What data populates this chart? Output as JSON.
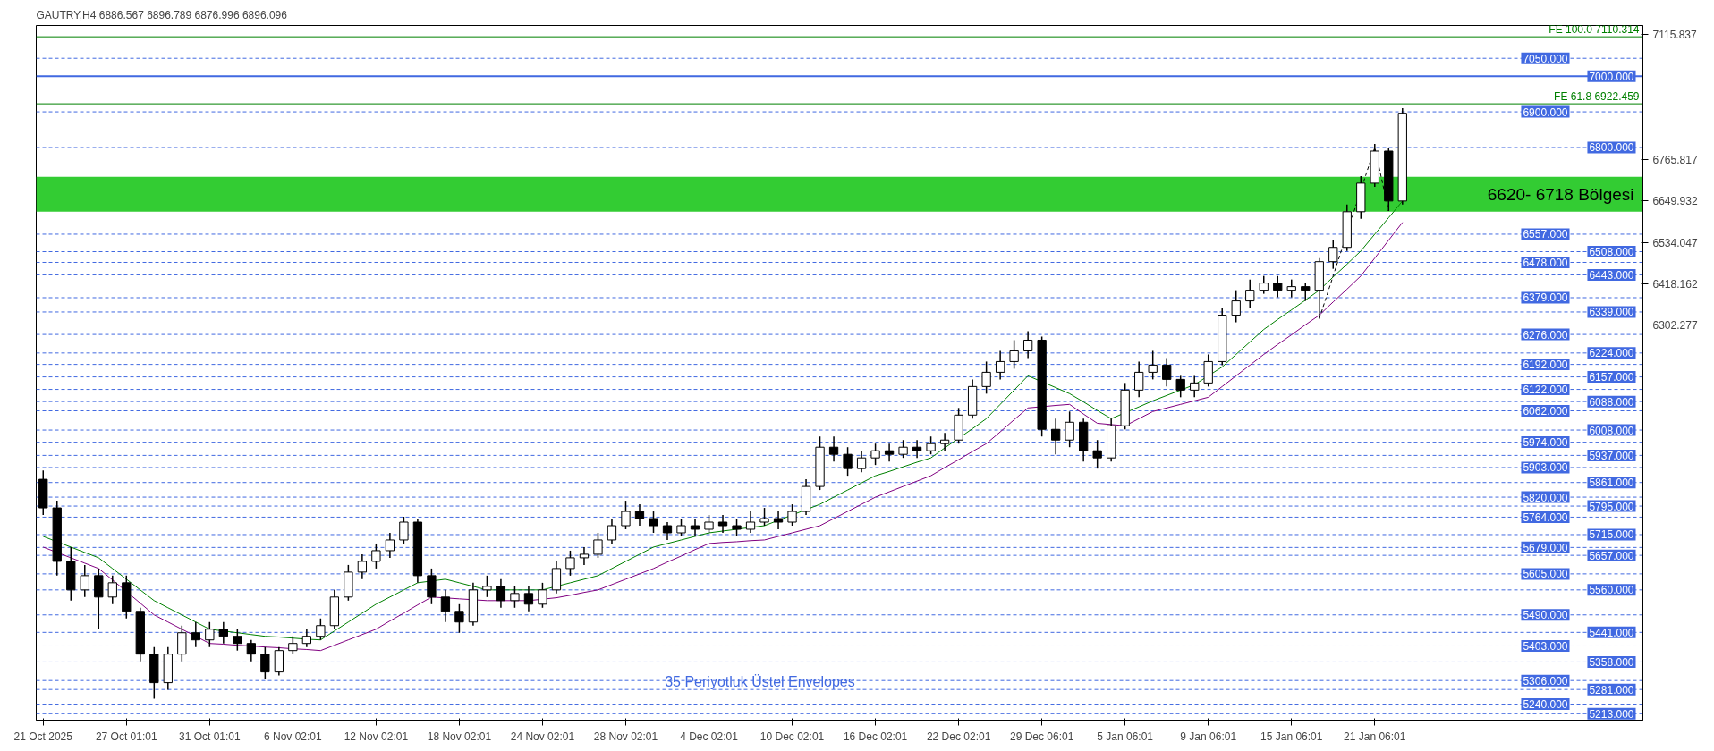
{
  "chart_data": {
    "type": "candlestick",
    "title": "GAUTRY,H4  6886.567 6896.789 6876.996 6896.096",
    "categories": [
      "21 Oct 2025",
      null,
      null,
      null,
      null,
      null,
      "27 Oct 01:01",
      null,
      null,
      null,
      null,
      null,
      "31 Oct 01:01",
      null,
      null,
      null,
      null,
      null,
      "6 Nov 02:01",
      null,
      null,
      null,
      null,
      null,
      "12 Nov 02:01",
      null,
      null,
      null,
      null,
      null,
      "18 Nov 02:01",
      null,
      null,
      null,
      null,
      null,
      "24 Nov 02:01",
      null,
      null,
      null,
      null,
      null,
      "28 Nov 02:01",
      null,
      null,
      null,
      null,
      null,
      "4 Dec 02:01",
      null,
      null,
      null,
      null,
      null,
      "10 Dec 02:01",
      null,
      null,
      null,
      null,
      null,
      "16 Dec 02:01",
      null,
      null,
      null,
      null,
      null,
      "22 Dec 02:01",
      null,
      null,
      null,
      null,
      null,
      "29 Dec 06:01",
      null,
      null,
      null,
      null,
      null,
      "5 Jan 06:01",
      null,
      null,
      null,
      null,
      null,
      "9 Jan 06:01",
      null,
      null,
      null,
      null,
      null,
      "15 Jan 06:01",
      null,
      null,
      null,
      null,
      null,
      "21 Jan 06:01",
      null,
      null
    ],
    "ohlc": [
      [
        5870,
        5895,
        5770,
        5790
      ],
      [
        5790,
        5810,
        5600,
        5640
      ],
      [
        5640,
        5680,
        5530,
        5560
      ],
      [
        5560,
        5630,
        5540,
        5600
      ],
      [
        5600,
        5620,
        5450,
        5540
      ],
      [
        5540,
        5600,
        5520,
        5580
      ],
      [
        5580,
        5600,
        5480,
        5500
      ],
      [
        5500,
        5510,
        5360,
        5380
      ],
      [
        5380,
        5400,
        5255,
        5300
      ],
      [
        5300,
        5400,
        5280,
        5380
      ],
      [
        5380,
        5460,
        5360,
        5440
      ],
      [
        5440,
        5470,
        5400,
        5420
      ],
      [
        5420,
        5470,
        5400,
        5450
      ],
      [
        5450,
        5470,
        5410,
        5430
      ],
      [
        5430,
        5450,
        5390,
        5410
      ],
      [
        5410,
        5420,
        5360,
        5380
      ],
      [
        5380,
        5400,
        5310,
        5330
      ],
      [
        5330,
        5400,
        5320,
        5390
      ],
      [
        5390,
        5430,
        5380,
        5410
      ],
      [
        5410,
        5450,
        5400,
        5430
      ],
      [
        5430,
        5480,
        5420,
        5460
      ],
      [
        5460,
        5560,
        5450,
        5540
      ],
      [
        5540,
        5630,
        5530,
        5610
      ],
      [
        5610,
        5660,
        5590,
        5640
      ],
      [
        5640,
        5690,
        5620,
        5670
      ],
      [
        5670,
        5720,
        5650,
        5700
      ],
      [
        5700,
        5765,
        5690,
        5750
      ],
      [
        5750,
        5760,
        5580,
        5600
      ],
      [
        5600,
        5620,
        5520,
        5540
      ],
      [
        5540,
        5560,
        5470,
        5500
      ],
      [
        5500,
        5520,
        5440,
        5470
      ],
      [
        5470,
        5580,
        5460,
        5560
      ],
      [
        5560,
        5600,
        5540,
        5570
      ],
      [
        5570,
        5590,
        5510,
        5530
      ],
      [
        5530,
        5570,
        5510,
        5550
      ],
      [
        5550,
        5570,
        5500,
        5520
      ],
      [
        5520,
        5580,
        5510,
        5560
      ],
      [
        5560,
        5640,
        5550,
        5620
      ],
      [
        5620,
        5670,
        5600,
        5650
      ],
      [
        5650,
        5680,
        5630,
        5660
      ],
      [
        5660,
        5720,
        5650,
        5700
      ],
      [
        5700,
        5760,
        5690,
        5740
      ],
      [
        5740,
        5810,
        5730,
        5780
      ],
      [
        5780,
        5800,
        5740,
        5760
      ],
      [
        5760,
        5780,
        5720,
        5740
      ],
      [
        5740,
        5750,
        5700,
        5720
      ],
      [
        5720,
        5760,
        5710,
        5740
      ],
      [
        5740,
        5760,
        5710,
        5730
      ],
      [
        5730,
        5770,
        5720,
        5750
      ],
      [
        5750,
        5770,
        5720,
        5740
      ],
      [
        5740,
        5760,
        5710,
        5730
      ],
      [
        5730,
        5780,
        5720,
        5750
      ],
      [
        5750,
        5790,
        5740,
        5760
      ],
      [
        5760,
        5780,
        5730,
        5750
      ],
      [
        5750,
        5800,
        5740,
        5780
      ],
      [
        5780,
        5870,
        5770,
        5850
      ],
      [
        5850,
        5990,
        5840,
        5960
      ],
      [
        5960,
        5990,
        5920,
        5940
      ],
      [
        5940,
        5960,
        5880,
        5900
      ],
      [
        5900,
        5950,
        5890,
        5930
      ],
      [
        5930,
        5970,
        5910,
        5950
      ],
      [
        5950,
        5970,
        5920,
        5940
      ],
      [
        5940,
        5980,
        5930,
        5960
      ],
      [
        5960,
        5980,
        5930,
        5950
      ],
      [
        5950,
        5990,
        5940,
        5970
      ],
      [
        5970,
        6000,
        5950,
        5980
      ],
      [
        5980,
        6070,
        5970,
        6050
      ],
      [
        6050,
        6150,
        6040,
        6130
      ],
      [
        6130,
        6200,
        6110,
        6170
      ],
      [
        6170,
        6230,
        6150,
        6200
      ],
      [
        6200,
        6260,
        6180,
        6230
      ],
      [
        6230,
        6285,
        6210,
        6260
      ],
      [
        6260,
        6270,
        5990,
        6010
      ],
      [
        6010,
        6040,
        5940,
        5980
      ],
      [
        5980,
        6060,
        5960,
        6030
      ],
      [
        6030,
        6040,
        5920,
        5950
      ],
      [
        5950,
        5980,
        5900,
        5930
      ],
      [
        5930,
        6040,
        5920,
        6020
      ],
      [
        6020,
        6140,
        6010,
        6120
      ],
      [
        6120,
        6200,
        6100,
        6170
      ],
      [
        6170,
        6230,
        6150,
        6190
      ],
      [
        6190,
        6210,
        6130,
        6150
      ],
      [
        6150,
        6160,
        6100,
        6120
      ],
      [
        6120,
        6160,
        6100,
        6140
      ],
      [
        6140,
        6220,
        6130,
        6200
      ],
      [
        6200,
        6350,
        6190,
        6330
      ],
      [
        6330,
        6400,
        6310,
        6370
      ],
      [
        6370,
        6430,
        6350,
        6400
      ],
      [
        6400,
        6440,
        6390,
        6420
      ],
      [
        6420,
        6440,
        6380,
        6400
      ],
      [
        6400,
        6430,
        6380,
        6410
      ],
      [
        6410,
        6420,
        6370,
        6400
      ],
      [
        6400,
        6490,
        6320,
        6480
      ],
      [
        6480,
        6540,
        6460,
        6520
      ],
      [
        6520,
        6640,
        6510,
        6620
      ],
      [
        6620,
        6720,
        6600,
        6700
      ],
      [
        6700,
        6810,
        6690,
        6790
      ],
      [
        6790,
        6800,
        6622,
        6650
      ],
      [
        6650,
        6910,
        6640,
        6896
      ]
    ],
    "series": [
      {
        "type": "line",
        "color": "#008000",
        "values": [
          5710,
          null,
          5680,
          5665,
          5650,
          5620,
          5590,
          5560,
          5530,
          5510,
          5490,
          5470,
          5450,
          5445,
          5440,
          5435,
          5430,
          5428,
          5425,
          5422,
          5420,
          5445,
          5470,
          5495,
          5520,
          5540,
          5560,
          5580,
          null,
          5590,
          5580,
          5570,
          5560,
          null,
          5560,
          5560,
          5560,
          null,
          5580,
          5590,
          5600,
          5620,
          5640,
          5660,
          5680,
          5690,
          5700,
          5710,
          5720,
          5725,
          5730,
          5735,
          5740,
          5755,
          5770,
          null,
          5800,
          5820,
          5840,
          5860,
          5880,
          5892,
          5905,
          5918,
          5930,
          5958,
          5985,
          6012,
          6040,
          6080,
          6120,
          6160,
          null,
          6127,
          6110,
          6087,
          6063,
          6040,
          null,
          6073,
          6090,
          6105,
          6120,
          6135,
          null,
          6185,
          6220,
          6255,
          6290,
          6318,
          6345,
          6372,
          6400,
          6437,
          6473,
          6510,
          6557,
          6603,
          6650
        ]
      },
      {
        "type": "line",
        "color": "#800080",
        "values": [
          5680,
          null,
          5650,
          5635,
          5620,
          5588,
          null,
          5523,
          5490,
          5470,
          5450,
          5430,
          5410,
          5408,
          5405,
          5403,
          5400,
          5398,
          5395,
          5393,
          5390,
          5405,
          5420,
          5435,
          5450,
          5473,
          5495,
          5518,
          5540,
          null,
          5535,
          null,
          5530,
          null,
          5530,
          5530,
          null,
          5538,
          5545,
          5553,
          5560,
          5575,
          5590,
          5605,
          5620,
          5638,
          5655,
          5673,
          5690,
          5693,
          5695,
          5698,
          5700,
          5710,
          5720,
          5730,
          5740,
          5760,
          5780,
          5800,
          5820,
          5835,
          5850,
          5865,
          5880,
          5903,
          5925,
          5948,
          5970,
          6003,
          6037,
          6070,
          null,
          6077,
          6080,
          6053,
          6027,
          null,
          6020,
          6040,
          6060,
          6070,
          6080,
          6090,
          6100,
          6130,
          6160,
          6190,
          6220,
          6248,
          6275,
          6303,
          6330,
          6367,
          6403,
          6440,
          6490,
          6540,
          6590
        ]
      },
      {
        "type": "line",
        "color": "#000000",
        "line_style": "dashed",
        "values": [
          null,
          null,
          null,
          null,
          null,
          null,
          null,
          null,
          null,
          null,
          null,
          null,
          null,
          null,
          null,
          null,
          null,
          null,
          null,
          null,
          null,
          null,
          null,
          null,
          null,
          null,
          null,
          null,
          null,
          null,
          null,
          null,
          null,
          null,
          null,
          null,
          null,
          null,
          null,
          null,
          null,
          null,
          null,
          null,
          null,
          null,
          null,
          null,
          null,
          null,
          null,
          null,
          null,
          null,
          null,
          null,
          null,
          null,
          null,
          null,
          null,
          null,
          null,
          null,
          null,
          null,
          null,
          null,
          null,
          null,
          null,
          null,
          null,
          null,
          null,
          null,
          null,
          null,
          null,
          null,
          null,
          null,
          null,
          null,
          null,
          null,
          null,
          null,
          null,
          null,
          null,
          null,
          6320,
          null,
          null,
          null,
          6800,
          6622,
          null
        ]
      }
    ],
    "ylim": [
      5195,
      7142
    ],
    "yticks": [
      7115.837,
      6765.817,
      6649.932,
      6534.047,
      6418.162,
      6302.277
    ],
    "ref_lines": [
      {
        "axis": "y",
        "value": 7110.314,
        "color": "#008000",
        "line_style": "solid"
      },
      {
        "axis": "y",
        "value": 6922.459,
        "color": "#008000",
        "line_style": "solid"
      },
      {
        "axis": "y",
        "value": 7050,
        "label": "7050.000",
        "color": "#4169e1",
        "line_style": "dashed"
      },
      {
        "axis": "y",
        "value": 7000,
        "label": "7000.000",
        "color": "#4169e1",
        "line_style": "solid"
      },
      {
        "axis": "y",
        "value": 6900,
        "label": "6900.000",
        "color": "#4169e1",
        "line_style": "dashed"
      },
      {
        "axis": "y",
        "value": 6800,
        "label": "6800.000",
        "color": "#4169e1",
        "line_style": "dashed"
      },
      {
        "axis": "y",
        "value": 6557,
        "label": "6557.000",
        "color": "#4169e1",
        "line_style": "dashed"
      },
      {
        "axis": "y",
        "value": 6508,
        "label": "6508.000",
        "color": "#4169e1",
        "line_style": "dashed"
      },
      {
        "axis": "y",
        "value": 6478,
        "label": "6478.000",
        "color": "#4169e1",
        "line_style": "dashed"
      },
      {
        "axis": "y",
        "value": 6443,
        "label": "6443.000",
        "color": "#4169e1",
        "line_style": "dashed"
      },
      {
        "axis": "y",
        "value": 6379,
        "label": "6379.000",
        "color": "#4169e1",
        "line_style": "dashed"
      },
      {
        "axis": "y",
        "value": 6339,
        "label": "6339.000",
        "color": "#4169e1",
        "line_style": "dashed"
      },
      {
        "axis": "y",
        "value": 6276,
        "label": "6276.000",
        "color": "#4169e1",
        "line_style": "dashed"
      },
      {
        "axis": "y",
        "value": 6224,
        "label": "6224.000",
        "color": "#4169e1",
        "line_style": "dashed"
      },
      {
        "axis": "y",
        "value": 6192,
        "label": "6192.000",
        "color": "#4169e1",
        "line_style": "dashed"
      },
      {
        "axis": "y",
        "value": 6157,
        "label": "6157.000",
        "color": "#4169e1",
        "line_style": "dashed"
      },
      {
        "axis": "y",
        "value": 6122,
        "label": "6122.000",
        "color": "#4169e1",
        "line_style": "dashed"
      },
      {
        "axis": "y",
        "value": 6088,
        "label": "6088.000",
        "color": "#4169e1",
        "line_style": "dashed"
      },
      {
        "axis": "y",
        "value": 6062,
        "label": "6062.000",
        "color": "#4169e1",
        "line_style": "dashed"
      },
      {
        "axis": "y",
        "value": 6008,
        "label": "6008.000",
        "color": "#4169e1",
        "line_style": "dashed"
      },
      {
        "axis": "y",
        "value": 5974,
        "label": "5974.000",
        "color": "#4169e1",
        "line_style": "dashed"
      },
      {
        "axis": "y",
        "value": 5937,
        "label": "5937.000",
        "color": "#4169e1",
        "line_style": "dashed"
      },
      {
        "axis": "y",
        "value": 5903,
        "label": "5903.000",
        "color": "#4169e1",
        "line_style": "dashed"
      },
      {
        "axis": "y",
        "value": 5861,
        "label": "5861.000",
        "color": "#4169e1",
        "line_style": "dashed"
      },
      {
        "axis": "y",
        "value": 5820,
        "label": "5820.000",
        "color": "#4169e1",
        "line_style": "dashed"
      },
      {
        "axis": "y",
        "value": 5795,
        "label": "5795.000",
        "color": "#4169e1",
        "line_style": "dashed"
      },
      {
        "axis": "y",
        "value": 5764,
        "label": "5764.000",
        "color": "#4169e1",
        "line_style": "dashed"
      },
      {
        "axis": "y",
        "value": 5715,
        "label": "5715.000",
        "color": "#4169e1",
        "line_style": "dashed"
      },
      {
        "axis": "y",
        "value": 5679,
        "label": "5679.000",
        "color": "#4169e1",
        "line_style": "dashed"
      },
      {
        "axis": "y",
        "value": 5657,
        "label": "5657.000",
        "color": "#4169e1",
        "line_style": "dashed"
      },
      {
        "axis": "y",
        "value": 5605,
        "label": "5605.000",
        "color": "#4169e1",
        "line_style": "dashed"
      },
      {
        "axis": "y",
        "value": 5560,
        "label": "5560.000",
        "color": "#4169e1",
        "line_style": "dashed"
      },
      {
        "axis": "y",
        "value": 5490,
        "label": "5490.000",
        "color": "#4169e1",
        "line_style": "dashed"
      },
      {
        "axis": "y",
        "value": 5441,
        "label": "5441.000",
        "color": "#4169e1",
        "line_style": "dashed"
      },
      {
        "axis": "y",
        "value": 5403,
        "label": "5403.000",
        "color": "#4169e1",
        "line_style": "dashed"
      },
      {
        "axis": "y",
        "value": 5358,
        "label": "5358.000",
        "color": "#4169e1",
        "line_style": "dashed"
      },
      {
        "axis": "y",
        "value": 5306,
        "label": "5306.000",
        "color": "#4169e1",
        "line_style": "dashed"
      },
      {
        "axis": "y",
        "value": 5281,
        "label": "5281.000",
        "color": "#4169e1",
        "line_style": "dashed"
      },
      {
        "axis": "y",
        "value": 5240,
        "label": "5240.000",
        "color": "#4169e1",
        "line_style": "dashed"
      },
      {
        "axis": "y",
        "value": 5213,
        "label": "5213.000",
        "color": "#4169e1",
        "line_style": "dashed"
      }
    ],
    "bands": [
      {
        "axis": "y",
        "from": 6620,
        "to": 6718,
        "label": "6620- 6718 Bölgesi",
        "color": "#33cc33"
      }
    ],
    "annotations": [
      {
        "text": "FE 100.0 7110.314",
        "y": 7110.314
      },
      {
        "text": "FE 61.8 6922.459",
        "y": 6922.459
      },
      "35 Periyotluk Üstel Envelopes"
    ]
  }
}
